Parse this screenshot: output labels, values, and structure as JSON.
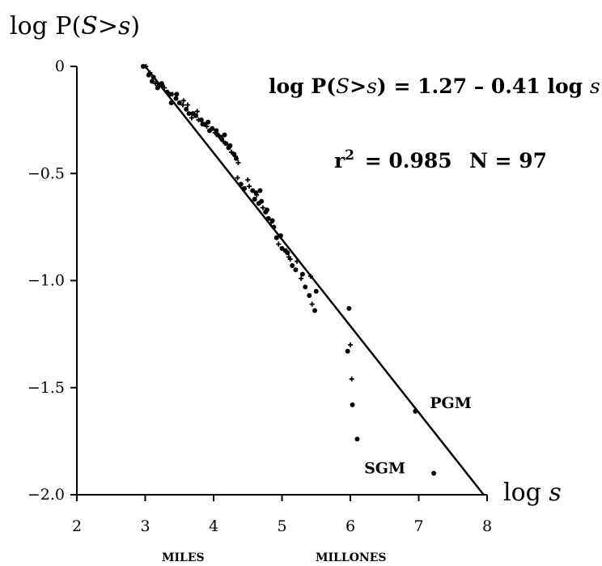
{
  "chart_data": {
    "type": "scatter",
    "ylabel": "log P(S>s)",
    "xlabel": "log s",
    "xlim": [
      2,
      8
    ],
    "ylim": [
      -2.0,
      0
    ],
    "x_ticks": [
      "2",
      "3",
      "4",
      "5",
      "6",
      "7",
      "8"
    ],
    "y_ticks": [
      "0",
      "−0.5",
      "−1.0",
      "−1.5",
      "−2.0"
    ],
    "grid": false,
    "equation": "log P(S>s) = 1.27 – 0.41 log s",
    "r2_label": "r² = 0.985",
    "n_label": "N = 97",
    "scale_labels": [
      "MILES",
      "MILLONES"
    ],
    "fit_line": {
      "from": [
        3.0,
        0.0
      ],
      "to": [
        7.95,
        -2.0
      ]
    },
    "annotations": [
      {
        "label": "PGM",
        "point": [
          6.95,
          -1.61
        ]
      },
      {
        "label": "SGM",
        "point": [
          7.22,
          -1.9
        ]
      }
    ],
    "series": [
      {
        "values": [
          [
            2.97,
            0.0
          ],
          [
            3.01,
            0.0
          ],
          [
            3.05,
            -0.04
          ],
          [
            3.1,
            -0.07
          ],
          [
            3.15,
            -0.08
          ],
          [
            3.2,
            -0.09
          ],
          [
            3.25,
            -0.09
          ],
          [
            3.28,
            -0.1
          ],
          [
            3.32,
            -0.12
          ],
          [
            3.36,
            -0.13
          ],
          [
            3.4,
            -0.13
          ],
          [
            3.45,
            -0.15
          ],
          [
            3.5,
            -0.17
          ],
          [
            3.55,
            -0.18
          ],
          [
            3.6,
            -0.2
          ],
          [
            3.64,
            -0.22
          ],
          [
            3.68,
            -0.24
          ],
          [
            3.7,
            -0.22
          ],
          [
            3.74,
            -0.23
          ],
          [
            3.78,
            -0.25
          ],
          [
            3.82,
            -0.25
          ],
          [
            3.86,
            -0.27
          ],
          [
            3.9,
            -0.28
          ],
          [
            3.94,
            -0.3
          ],
          [
            3.98,
            -0.29
          ],
          [
            4.02,
            -0.31
          ],
          [
            4.06,
            -0.32
          ],
          [
            4.1,
            -0.33
          ],
          [
            4.14,
            -0.35
          ],
          [
            4.18,
            -0.36
          ],
          [
            4.22,
            -0.38
          ],
          [
            4.26,
            -0.4
          ],
          [
            4.3,
            -0.41
          ],
          [
            4.33,
            -0.43
          ],
          [
            4.35,
            -0.52
          ],
          [
            4.4,
            -0.55
          ],
          [
            4.45,
            -0.57
          ],
          [
            4.52,
            -0.56
          ],
          [
            4.57,
            -0.58
          ],
          [
            4.6,
            -0.62
          ],
          [
            4.63,
            -0.6
          ],
          [
            4.66,
            -0.64
          ],
          [
            4.7,
            -0.63
          ],
          [
            4.72,
            -0.66
          ],
          [
            4.76,
            -0.68
          ],
          [
            4.8,
            -0.71
          ],
          [
            4.84,
            -0.73
          ],
          [
            4.88,
            -0.75
          ],
          [
            4.92,
            -0.8
          ],
          [
            4.95,
            -0.83
          ],
          [
            5.0,
            -0.85
          ],
          [
            5.05,
            -0.86
          ],
          [
            5.1,
            -0.89
          ],
          [
            5.15,
            -0.93
          ],
          [
            5.2,
            -0.95
          ],
          [
            5.28,
            -0.99
          ],
          [
            5.34,
            -1.03
          ],
          [
            5.4,
            -1.07
          ],
          [
            5.44,
            -1.11
          ],
          [
            5.48,
            -1.14
          ],
          [
            5.96,
            -1.33
          ],
          [
            6.02,
            -1.46
          ],
          [
            6.03,
            -1.58
          ],
          [
            6.1,
            -1.74
          ],
          [
            3.07,
            -0.03
          ],
          [
            3.18,
            -0.1
          ],
          [
            3.38,
            -0.17
          ],
          [
            3.62,
            -0.18
          ],
          [
            3.92,
            -0.26
          ],
          [
            4.16,
            -0.32
          ],
          [
            4.36,
            -0.45
          ],
          [
            4.68,
            -0.58
          ],
          [
            4.98,
            -0.79
          ],
          [
            5.22,
            -0.91
          ],
          [
            3.12,
            -0.05
          ],
          [
            3.46,
            -0.13
          ],
          [
            3.76,
            -0.21
          ],
          [
            4.04,
            -0.3
          ],
          [
            4.24,
            -0.37
          ],
          [
            4.5,
            -0.53
          ],
          [
            4.78,
            -0.67
          ],
          [
            5.08,
            -0.87
          ],
          [
            5.42,
            -0.98
          ],
          [
            5.98,
            -1.13
          ],
          [
            3.24,
            -0.08
          ],
          [
            3.56,
            -0.16
          ],
          [
            3.84,
            -0.27
          ],
          [
            4.12,
            -0.34
          ],
          [
            4.32,
            -0.42
          ],
          [
            4.62,
            -0.59
          ],
          [
            4.86,
            -0.72
          ],
          [
            5.12,
            -0.9
          ],
          [
            5.3,
            -0.97
          ],
          [
            5.5,
            -1.05
          ],
          [
            6.0,
            -1.3
          ],
          [
            6.95,
            -1.61
          ],
          [
            7.22,
            -1.9
          ]
        ]
      }
    ]
  }
}
